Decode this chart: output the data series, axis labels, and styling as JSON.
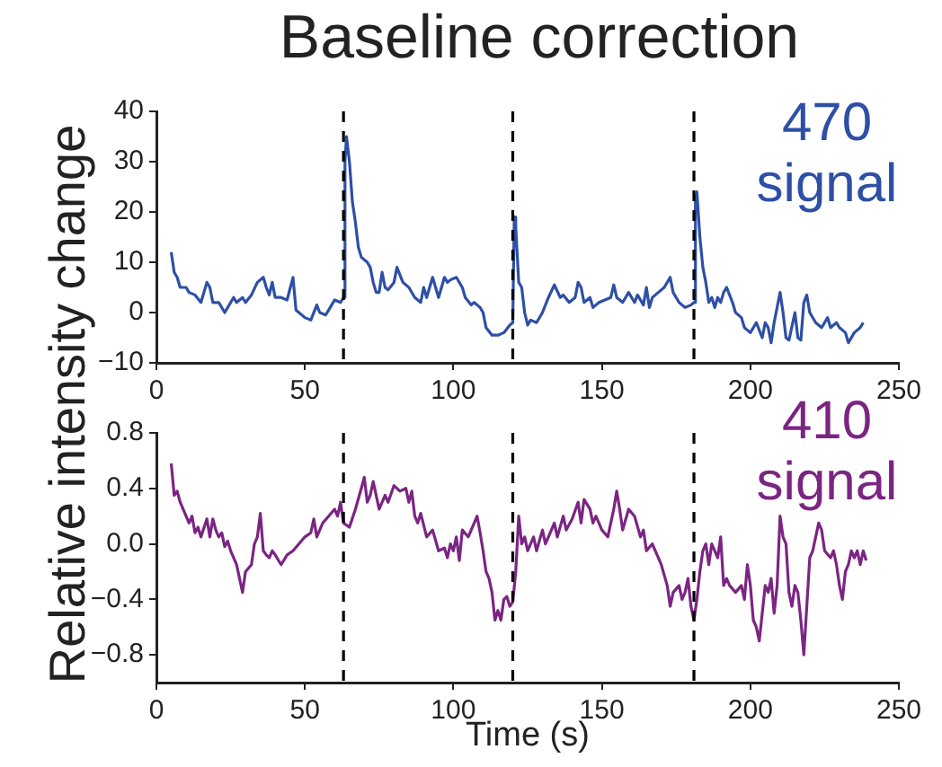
{
  "chart_data": [
    {
      "type": "line",
      "title": "Baseline correction",
      "ylabel": "Relative intensity change",
      "grid": false,
      "legend": false,
      "marker": "none",
      "line_style": "solid",
      "xlim": [
        0,
        250
      ],
      "xticks": [
        0,
        50,
        100,
        150,
        200,
        250
      ],
      "ylim": [
        -10,
        40
      ],
      "yticks": [
        {
          "value": -10,
          "label": "−10"
        },
        0,
        10,
        20,
        30,
        40
      ],
      "ref_lines": [
        {
          "axis": "x",
          "value": 63,
          "color": "#000000",
          "line_style": "dashed"
        },
        {
          "axis": "x",
          "value": 120,
          "color": "#000000",
          "line_style": "dashed"
        },
        {
          "axis": "x",
          "value": 181,
          "color": "#000000",
          "line_style": "dashed"
        }
      ],
      "series": [
        {
          "name": "470 signal",
          "color": "#2e4fa6",
          "x": [
            5,
            6,
            7,
            8,
            10,
            11,
            13,
            15,
            17,
            18,
            19,
            21,
            23,
            25,
            26,
            27,
            29,
            30,
            32,
            34,
            36,
            37,
            38,
            39,
            40,
            42,
            44,
            46,
            47,
            50,
            52,
            54,
            55,
            57,
            59,
            60,
            62,
            63,
            63.5,
            64,
            65,
            66,
            67,
            68,
            69,
            71,
            72,
            73,
            74,
            75,
            76,
            77,
            78,
            80,
            81,
            83,
            85,
            87,
            89,
            90,
            91,
            93,
            95,
            97,
            98,
            99,
            101,
            103,
            104,
            106,
            107,
            109,
            110,
            111,
            113,
            115,
            117,
            119,
            120,
            120.5,
            121,
            122,
            123,
            124,
            125,
            126,
            128,
            130,
            132,
            134,
            136,
            137,
            139,
            141,
            142,
            143,
            144,
            146,
            147,
            149,
            151,
            153,
            154,
            155,
            157,
            159,
            161,
            162,
            164,
            165,
            166,
            167,
            169,
            171,
            173,
            174,
            176,
            178,
            180,
            181,
            181.5,
            182,
            183,
            184,
            185,
            186,
            187,
            188,
            189,
            190,
            191,
            192,
            194,
            195,
            197,
            198,
            200,
            202,
            204,
            205,
            206,
            207,
            208,
            210,
            211,
            212,
            213,
            215,
            216,
            217,
            218,
            219,
            220,
            222,
            224,
            226,
            227,
            229,
            230,
            232,
            233,
            235,
            237,
            238
          ],
          "values": [
            12,
            8,
            7,
            5,
            5,
            4,
            3.5,
            2,
            6,
            5,
            2,
            2,
            0,
            2,
            3,
            2,
            3,
            2,
            3.5,
            6,
            7,
            5,
            3.5,
            6,
            3,
            3,
            2.5,
            7,
            0.5,
            -1,
            -1.5,
            1.5,
            0,
            -0.5,
            1.5,
            2.5,
            2,
            3,
            30,
            35,
            30,
            22,
            18,
            13,
            11,
            10,
            9,
            6,
            4,
            4,
            8,
            5,
            4.5,
            6,
            9,
            6,
            5,
            3,
            2,
            5,
            3,
            7,
            3,
            7,
            6,
            6.5,
            7,
            5,
            3,
            1.5,
            2,
            1,
            0,
            -3,
            -4.5,
            -4.5,
            -4,
            -2.5,
            -2,
            19,
            17,
            6,
            5,
            0,
            -2.5,
            -1.5,
            -2,
            0,
            3,
            5.5,
            3,
            3.5,
            2,
            3,
            6,
            5,
            2,
            3,
            1,
            2,
            2.5,
            3,
            5.5,
            3,
            2,
            4,
            2,
            3.5,
            1.5,
            5,
            1,
            3,
            4,
            5,
            7,
            4,
            2,
            1,
            1.5,
            2,
            22,
            24,
            15,
            9,
            6,
            2,
            3,
            1,
            3,
            2,
            4,
            5,
            2,
            0,
            -1,
            -3,
            -4,
            -2,
            -5,
            -2,
            -3,
            -6,
            -2,
            4,
            0,
            -5,
            -5.5,
            0,
            -5,
            -5.5,
            2,
            3.5,
            0,
            -2,
            -3,
            -1,
            -3,
            -2,
            -3,
            -4,
            -6,
            -4,
            -3,
            -2
          ]
        }
      ]
    },
    {
      "type": "line",
      "xlabel": "Time (s)",
      "grid": false,
      "legend": false,
      "marker": "none",
      "line_style": "solid",
      "xlim": [
        0,
        250
      ],
      "xticks": [
        0,
        50,
        100,
        150,
        200,
        250
      ],
      "ylim": [
        -1.0,
        0.8
      ],
      "yticks": [
        {
          "value": -0.8,
          "label": "−0.8"
        },
        {
          "value": -0.4,
          "label": "−0.4"
        },
        {
          "value": 0,
          "label": "0.0"
        },
        0.4,
        0.8
      ],
      "ref_lines": [
        {
          "axis": "x",
          "value": 63,
          "color": "#000000",
          "line_style": "dashed"
        },
        {
          "axis": "x",
          "value": 120,
          "color": "#000000",
          "line_style": "dashed"
        },
        {
          "axis": "x",
          "value": 181,
          "color": "#000000",
          "line_style": "dashed"
        }
      ],
      "series": [
        {
          "name": "410 signal",
          "color": "#7b2583",
          "x": [
            5,
            6,
            7,
            8,
            9,
            10,
            11,
            12,
            13,
            14,
            15,
            17,
            18,
            19,
            20,
            21,
            22,
            23,
            24,
            25,
            27,
            28,
            29,
            30,
            32,
            33,
            34,
            35,
            36,
            37,
            38,
            39,
            40,
            42,
            44,
            46,
            48,
            50,
            52,
            53,
            54,
            56,
            58,
            60,
            61,
            62,
            63,
            65,
            67,
            69,
            70,
            71,
            72,
            73,
            75,
            77,
            78,
            80,
            82,
            84,
            85,
            86,
            87,
            88,
            89,
            91,
            93,
            95,
            97,
            98,
            99,
            100,
            101,
            102,
            103,
            105,
            106,
            108,
            109,
            110,
            111,
            112,
            113,
            114,
            115,
            116,
            117,
            118,
            119,
            120,
            121,
            122,
            123,
            124,
            125,
            127,
            128,
            130,
            131,
            132,
            134,
            135,
            137,
            138,
            140,
            142,
            143,
            144,
            146,
            147,
            148,
            150,
            152,
            154,
            155,
            156,
            157,
            159,
            161,
            163,
            164,
            165,
            167,
            168,
            170,
            172,
            173,
            174,
            176,
            177,
            178,
            179,
            180,
            181,
            182,
            183,
            184,
            185,
            186,
            187,
            188,
            189,
            190,
            191,
            192,
            193,
            195,
            197,
            198,
            199,
            200,
            201,
            202,
            203,
            204,
            205,
            206,
            207,
            208,
            209,
            210,
            211,
            212,
            213,
            214,
            215,
            216,
            217,
            218,
            219,
            220,
            221,
            222,
            223,
            224,
            225,
            227,
            228,
            229,
            230,
            231,
            232,
            233,
            234,
            235,
            236,
            237,
            238,
            239
          ],
          "values": [
            0.58,
            0.35,
            0.38,
            0.3,
            0.25,
            0.2,
            0.15,
            0.2,
            0.08,
            0.12,
            0.05,
            0.18,
            0.05,
            0.18,
            0.1,
            0.05,
            0.08,
            -0.02,
            0.02,
            -0.05,
            -0.15,
            -0.25,
            -0.35,
            -0.2,
            -0.15,
            0.0,
            0.05,
            0.22,
            -0.05,
            -0.08,
            -0.1,
            -0.05,
            -0.08,
            -0.15,
            -0.08,
            -0.05,
            0.0,
            0.05,
            0.08,
            0.18,
            0.05,
            0.15,
            0.2,
            0.25,
            0.2,
            0.3,
            0.15,
            0.12,
            0.25,
            0.4,
            0.48,
            0.3,
            0.35,
            0.45,
            0.25,
            0.35,
            0.3,
            0.42,
            0.38,
            0.4,
            0.3,
            0.38,
            0.2,
            0.15,
            0.22,
            0.05,
            0.1,
            -0.05,
            -0.03,
            -0.1,
            0.0,
            -0.05,
            0.05,
            -0.12,
            0.1,
            0.05,
            0.1,
            0.2,
            0.08,
            -0.05,
            -0.2,
            -0.25,
            -0.35,
            -0.55,
            -0.48,
            -0.55,
            -0.4,
            -0.38,
            -0.45,
            -0.42,
            -0.2,
            0.2,
            0.0,
            0.05,
            -0.05,
            0.05,
            -0.05,
            0.1,
            0.0,
            0.05,
            0.15,
            0.05,
            0.2,
            0.1,
            0.18,
            0.3,
            0.15,
            0.32,
            0.25,
            0.15,
            0.2,
            0.1,
            0.05,
            0.25,
            0.38,
            0.25,
            0.1,
            0.25,
            0.2,
            0.05,
            0.1,
            -0.05,
            0.0,
            -0.05,
            -0.15,
            -0.3,
            -0.45,
            -0.35,
            -0.3,
            -0.4,
            -0.35,
            -0.25,
            -0.45,
            -0.55,
            -0.4,
            -0.2,
            -0.05,
            0.0,
            -0.15,
            0.0,
            -0.05,
            -0.1,
            0.05,
            -0.3,
            -0.25,
            -0.3,
            -0.35,
            -0.3,
            -0.4,
            -0.15,
            -0.3,
            -0.55,
            -0.6,
            -0.7,
            -0.5,
            -0.3,
            -0.35,
            -0.25,
            -0.5,
            -0.3,
            0.2,
            0.05,
            0.0,
            -0.35,
            -0.45,
            -0.3,
            -0.35,
            -0.55,
            -0.8,
            -0.45,
            -0.1,
            -0.05,
            0.05,
            0.15,
            0.1,
            -0.05,
            -0.1,
            -0.05,
            -0.15,
            -0.3,
            -0.4,
            -0.2,
            -0.15,
            -0.05,
            -0.1,
            -0.05,
            -0.15,
            -0.05,
            -0.12
          ]
        }
      ]
    }
  ]
}
